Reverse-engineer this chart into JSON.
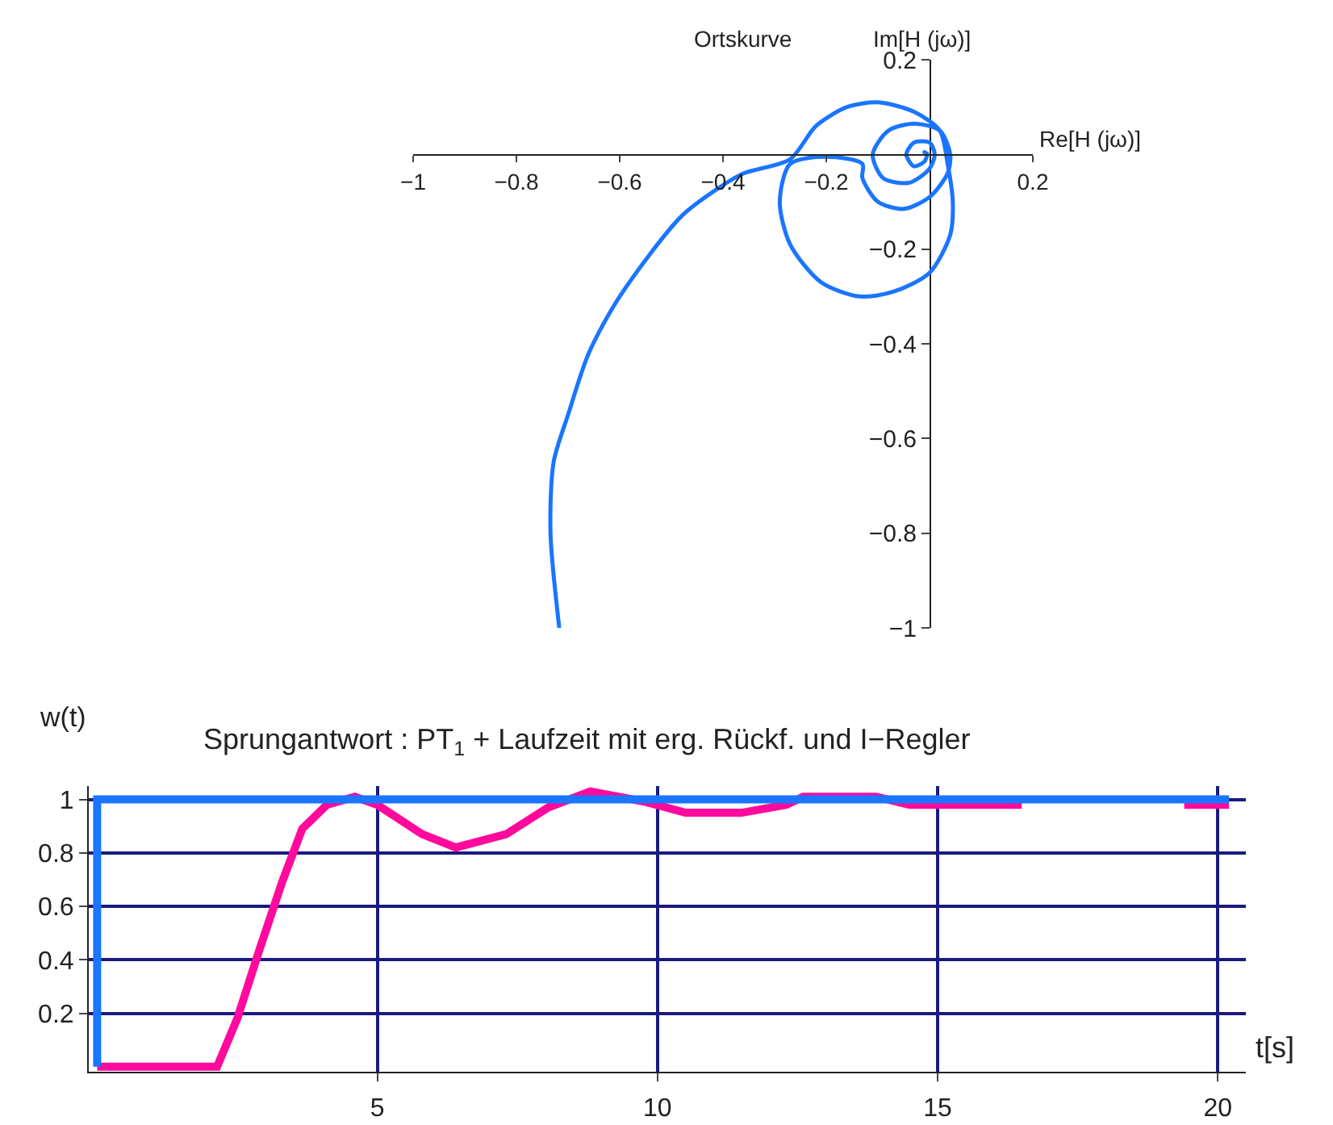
{
  "chart_data": [
    {
      "type": "line",
      "title": "Ortskurve",
      "xlabel": "Re[H (jω)]",
      "ylabel": "Im[H (jω)]",
      "grid": false,
      "marker": "none",
      "line_style": "solid",
      "xlim": [
        -1,
        0.2
      ],
      "ylim": [
        -1,
        0.2
      ],
      "xticks": [
        {
          "value": -1,
          "label": "−1"
        },
        {
          "value": -0.8,
          "label": "−0.8"
        },
        {
          "value": -0.6,
          "label": "−0.6"
        },
        {
          "value": -0.4,
          "label": "−0.4"
        },
        {
          "value": -0.2,
          "label": "−0.2"
        },
        0.2
      ],
      "yticks": [
        0.2,
        {
          "value": -0.2,
          "label": "−0.2"
        },
        {
          "value": -0.4,
          "label": "−0.4"
        },
        {
          "value": -0.6,
          "label": "−0.6"
        },
        {
          "value": -0.8,
          "label": "−0.8"
        },
        {
          "value": -1,
          "label": "−1"
        }
      ],
      "series": [
        {
          "color": "#1a75ff",
          "x": [
            -0.717,
            -0.734,
            -0.728,
            -0.7,
            -0.66,
            -0.6,
            -0.48,
            -0.4,
            -0.36,
            -0.27,
            -0.22,
            -0.16,
            -0.1,
            -0.03,
            0.02,
            0.035,
            0.045,
            0.04,
            0.0,
            -0.07,
            -0.135,
            -0.21,
            -0.27,
            -0.29,
            -0.27,
            -0.2,
            -0.13,
            -0.13,
            -0.1,
            -0.05,
            0.0,
            0.035,
            0.04,
            0.02,
            -0.03,
            -0.08,
            -0.11,
            -0.09,
            -0.04,
            0.0,
            0.01,
            0.0,
            -0.03,
            -0.045,
            -0.03,
            -0.01,
            -0.005,
            -0.01,
            -0.003
          ],
          "values": [
            -1.0,
            -0.8,
            -0.65,
            -0.55,
            -0.42,
            -0.3,
            -0.13,
            -0.065,
            -0.04,
            -0.01,
            0.06,
            0.1,
            0.11,
            0.09,
            0.05,
            -0.02,
            -0.1,
            -0.17,
            -0.25,
            -0.29,
            -0.3,
            -0.27,
            -0.19,
            -0.1,
            -0.02,
            -0.005,
            -0.02,
            -0.05,
            -0.1,
            -0.115,
            -0.09,
            -0.04,
            0.0,
            0.05,
            0.065,
            0.05,
            0.0,
            -0.05,
            -0.06,
            -0.03,
            0.0,
            0.025,
            0.025,
            0.0,
            -0.025,
            -0.015,
            0.0,
            0.005,
            0.0
          ]
        }
      ]
    },
    {
      "type": "line",
      "title": "Sprungantwort : PT$_{1}$ + Laufzeit mit erg. Rückf. und I−Regler",
      "xlabel": "t[s]",
      "ylabel": "w(t)",
      "grid": true,
      "marker": "none",
      "line_style": "solid",
      "xlim": [
        -0.15,
        20.5
      ],
      "ylim": [
        -0.02,
        1.05
      ],
      "xticks": [
        5,
        10,
        15,
        20
      ],
      "yticks": [
        0.2,
        0.4,
        0.6,
        0.8,
        1
      ],
      "series": [
        {
          "color": "#ff0a9c",
          "x": [
            0,
            2.14,
            2.5,
            2.9,
            3.3,
            3.66,
            4.1,
            4.6,
            5.0,
            5.8,
            6.4,
            7.3,
            8.05,
            8.8,
            9.8,
            10.5,
            11.5,
            12.3,
            12.6,
            13.9,
            14.5,
            16.5,
            17.5,
            18.5,
            19.4,
            20.2
          ],
          "values": [
            0,
            0,
            0.18,
            0.44,
            0.69,
            0.89,
            0.98,
            1.01,
            0.98,
            0.87,
            0.82,
            0.87,
            0.97,
            1.03,
            0.99,
            0.95,
            0.95,
            0.98,
            1.01,
            1.01,
            0.98,
            0.98,
            null,
            null,
            0.98,
            0.98
          ]
        },
        {
          "color": "#1a75ff",
          "x": [
            0,
            0,
            20.2
          ],
          "values": [
            0,
            1,
            1
          ]
        }
      ]
    }
  ]
}
